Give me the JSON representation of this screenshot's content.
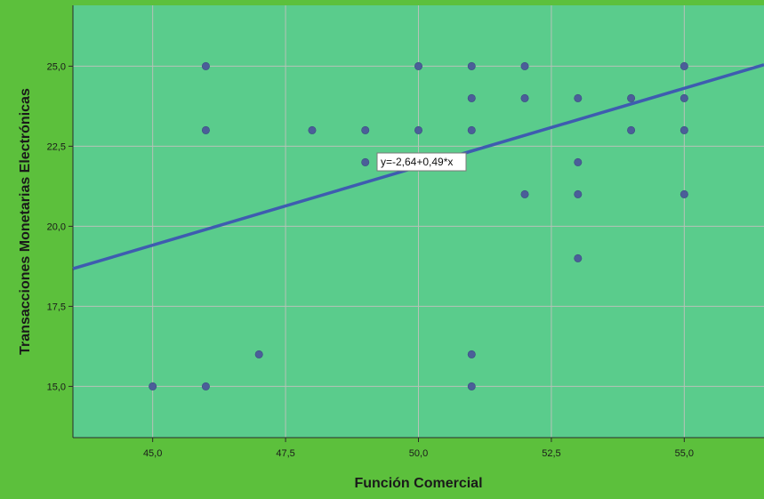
{
  "chart_data": {
    "type": "scatter",
    "title": "",
    "xlabel": "Función Comercial",
    "ylabel": "Transacciones Monetarias Electrónicas",
    "xlim": [
      43.5,
      56.5
    ],
    "ylim": [
      13.4,
      26.9
    ],
    "x_ticks": [
      45.0,
      47.5,
      50.0,
      52.5,
      55.0
    ],
    "x_tick_labels": [
      "45,0",
      "47,5",
      "50,0",
      "52,5",
      "55,0"
    ],
    "y_ticks": [
      15.0,
      17.5,
      20.0,
      22.5,
      25.0
    ],
    "y_tick_labels": [
      "15,0",
      "17,5",
      "20,0",
      "22,5",
      "25,0"
    ],
    "grid": true,
    "points": [
      {
        "x": 45,
        "y": 15
      },
      {
        "x": 46,
        "y": 15
      },
      {
        "x": 46,
        "y": 23
      },
      {
        "x": 46,
        "y": 25
      },
      {
        "x": 47,
        "y": 16
      },
      {
        "x": 48,
        "y": 23
      },
      {
        "x": 49,
        "y": 22
      },
      {
        "x": 49,
        "y": 23
      },
      {
        "x": 50,
        "y": 23
      },
      {
        "x": 50,
        "y": 25
      },
      {
        "x": 51,
        "y": 15
      },
      {
        "x": 51,
        "y": 16
      },
      {
        "x": 51,
        "y": 23
      },
      {
        "x": 51,
        "y": 24
      },
      {
        "x": 51,
        "y": 25
      },
      {
        "x": 52,
        "y": 21
      },
      {
        "x": 52,
        "y": 24
      },
      {
        "x": 52,
        "y": 25
      },
      {
        "x": 53,
        "y": 19
      },
      {
        "x": 53,
        "y": 21
      },
      {
        "x": 53,
        "y": 22
      },
      {
        "x": 53,
        "y": 24
      },
      {
        "x": 54,
        "y": 23
      },
      {
        "x": 54,
        "y": 24
      },
      {
        "x": 55,
        "y": 21
      },
      {
        "x": 55,
        "y": 23
      },
      {
        "x": 55,
        "y": 24
      },
      {
        "x": 55,
        "y": 25
      }
    ],
    "fit_line": {
      "intercept": -2.64,
      "slope": 0.49
    },
    "fit_label": "y=-2,64+0,49*x"
  },
  "colors": {
    "outer_background": "#5cc03c",
    "plot_background": "#5acc8c",
    "grid": "#b6c2b8",
    "point": "#4b5e99",
    "fit_line": "#3e5cb0",
    "text": "#1a1a1a"
  }
}
